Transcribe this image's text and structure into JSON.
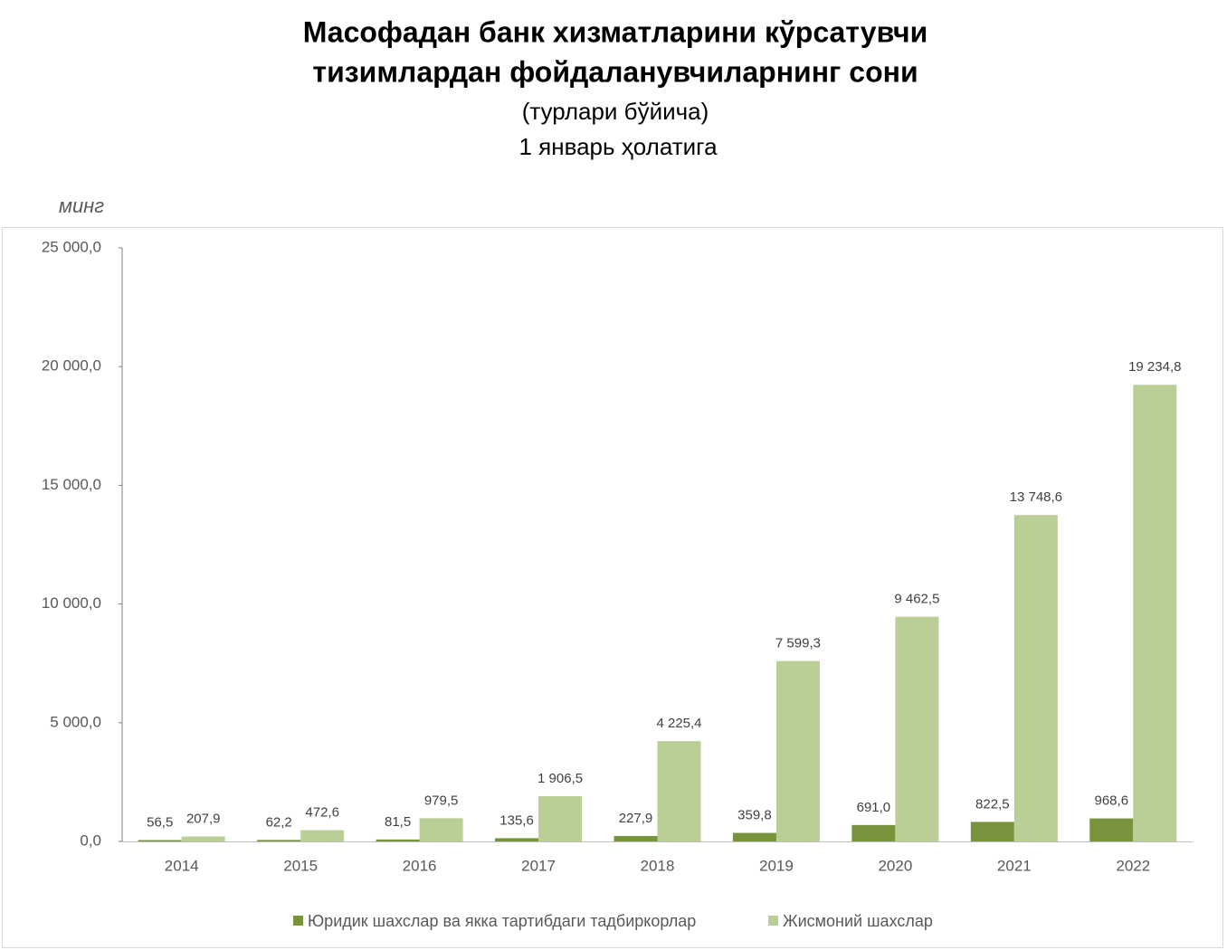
{
  "chart_data": {
    "type": "bar",
    "title": [
      "Масофадан банк хизматларини кўрсатувчи",
      "тизимлардан фойдаланувчиларнинг сони"
    ],
    "subtitle": [
      "(турлари бўйича)",
      "1 январь ҳолатига"
    ],
    "y_label": "минг",
    "categories": [
      "2014",
      "2015",
      "2016",
      "2017",
      "2018",
      "2019",
      "2020",
      "2021",
      "2022"
    ],
    "series": [
      {
        "name": "Юридик шахслар ва якка тартибдаги тадбиркорлар",
        "color": "#77933c",
        "values": [
          56.5,
          62.2,
          81.5,
          135.6,
          227.9,
          359.8,
          691.0,
          822.5,
          968.6
        ],
        "value_labels": [
          "56,5",
          "62,2",
          "81,5",
          "135,6",
          "227,9",
          "359,8",
          "691,0",
          "822,5",
          "968,6"
        ]
      },
      {
        "name": "Жисмоний шахслар",
        "color": "#b9cf96",
        "values": [
          207.9,
          472.6,
          979.5,
          1906.5,
          4225.4,
          7599.3,
          9462.5,
          13748.6,
          19234.8
        ],
        "value_labels": [
          "207,9",
          "472,6",
          "979,5",
          "1 906,5",
          "4 225,4",
          "7 599,3",
          "9 462,5",
          "13 748,6",
          "19 234,8"
        ]
      }
    ],
    "ylim": [
      0,
      25000
    ],
    "yticks": [
      {
        "value": 0,
        "label": "0,0"
      },
      {
        "value": 5000,
        "label": "5 000,0"
      },
      {
        "value": 10000,
        "label": "10 000,0"
      },
      {
        "value": 15000,
        "label": "15 000,0"
      },
      {
        "value": 20000,
        "label": "20 000,0"
      },
      {
        "value": 25000,
        "label": "25 000,0"
      }
    ],
    "grid": false,
    "legend": "bottom"
  }
}
